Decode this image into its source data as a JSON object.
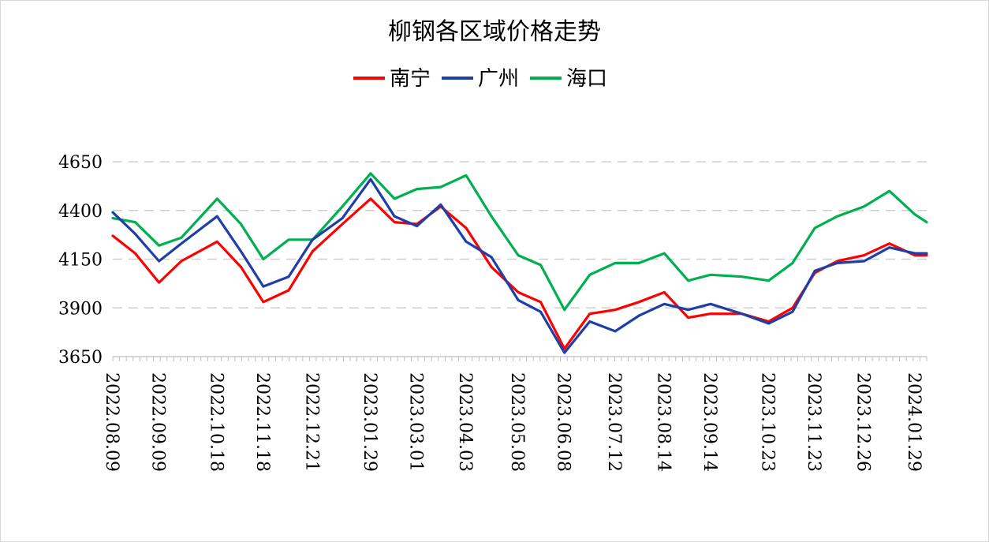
{
  "chart_data": {
    "type": "line",
    "title": "柳钢各区域价格走势",
    "xlabel": "",
    "ylabel": "",
    "ylim": [
      3650,
      4650
    ],
    "yticks": [
      3650,
      3900,
      4150,
      4400,
      4650
    ],
    "grid": true,
    "legend_position": "top",
    "x_tick_labels": [
      "2022.08.09",
      "2022.09.09",
      "2022.10.18",
      "2022.11.18",
      "2022.12.21",
      "2023.01.29",
      "2023.03.01",
      "2023.04.03",
      "2023.05.08",
      "2023.06.08",
      "2023.07.12",
      "2023.08.14",
      "2023.09.14",
      "2023.10.23",
      "2023.11.23",
      "2023.12.26",
      "2024.01.29"
    ],
    "x": [
      "2022.08.09",
      "2022.08.24",
      "2022.09.09",
      "2022.09.24",
      "2022.10.18",
      "2022.11.03",
      "2022.11.18",
      "2022.12.05",
      "2022.12.21",
      "2023.01.10",
      "2023.01.29",
      "2023.02.14",
      "2023.03.01",
      "2023.03.17",
      "2023.04.03",
      "2023.04.20",
      "2023.05.08",
      "2023.05.23",
      "2023.06.08",
      "2023.06.25",
      "2023.07.12",
      "2023.07.28",
      "2023.08.14",
      "2023.08.30",
      "2023.09.14",
      "2023.10.05",
      "2023.10.23",
      "2023.11.08",
      "2023.11.23",
      "2023.12.08",
      "2023.12.26",
      "2024.01.12",
      "2024.01.29",
      "2024.02.06"
    ],
    "series": [
      {
        "name": "南宁",
        "color": "#ff0000",
        "values": [
          4270,
          4180,
          4030,
          4140,
          4240,
          4110,
          3930,
          3990,
          4190,
          4330,
          4460,
          4340,
          4330,
          4420,
          4310,
          4110,
          3980,
          3930,
          3690,
          3870,
          3890,
          3930,
          3980,
          3850,
          3870,
          3870,
          3830,
          3900,
          4080,
          4140,
          4170,
          4230,
          4170,
          4170
        ]
      },
      {
        "name": "广州",
        "color": "#1f3fa8",
        "values": [
          4390,
          4280,
          4140,
          4230,
          4370,
          4190,
          4010,
          4060,
          4250,
          4360,
          4560,
          4370,
          4320,
          4430,
          4240,
          4160,
          3940,
          3880,
          3670,
          3830,
          3780,
          3860,
          3920,
          3890,
          3920,
          3870,
          3820,
          3880,
          4090,
          4130,
          4140,
          4210,
          4180,
          4180
        ]
      },
      {
        "name": "海口",
        "color": "#00b050",
        "values": [
          4360,
          4340,
          4220,
          4260,
          4460,
          4330,
          4150,
          4250,
          4250,
          4420,
          4590,
          4460,
          4510,
          4520,
          4580,
          4370,
          4170,
          4120,
          3890,
          4070,
          4130,
          4130,
          4180,
          4040,
          4070,
          4060,
          4040,
          4130,
          4310,
          4370,
          4420,
          4500,
          4380,
          4340
        ]
      }
    ]
  }
}
